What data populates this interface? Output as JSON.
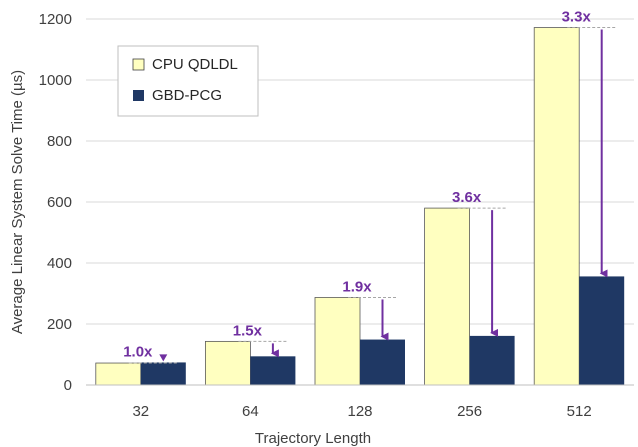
{
  "chart_data": {
    "type": "bar",
    "title": "",
    "xlabel": "Trajectory Length",
    "ylabel": "Average Linear System Solve Time  (µs)",
    "categories": [
      "32",
      "64",
      "128",
      "256",
      "512"
    ],
    "series": [
      {
        "name": "CPU QDLDL",
        "values": [
          72,
          143,
          287,
          580,
          1172
        ],
        "color": "#FFFFC0"
      },
      {
        "name": "GBD-PCG",
        "values": [
          74,
          94,
          149,
          161,
          356
        ],
        "color": "#1F3864"
      }
    ],
    "ylim": [
      0,
      1200
    ],
    "yticks": [
      "0",
      "200",
      "400",
      "600",
      "800",
      "1000",
      "1200"
    ],
    "grid": true,
    "legend": "top-left",
    "annotations": [
      "1.0x",
      "1.5x",
      "1.9x",
      "3.6x",
      "3.3x"
    ],
    "annotation_color": "#7030A0"
  }
}
